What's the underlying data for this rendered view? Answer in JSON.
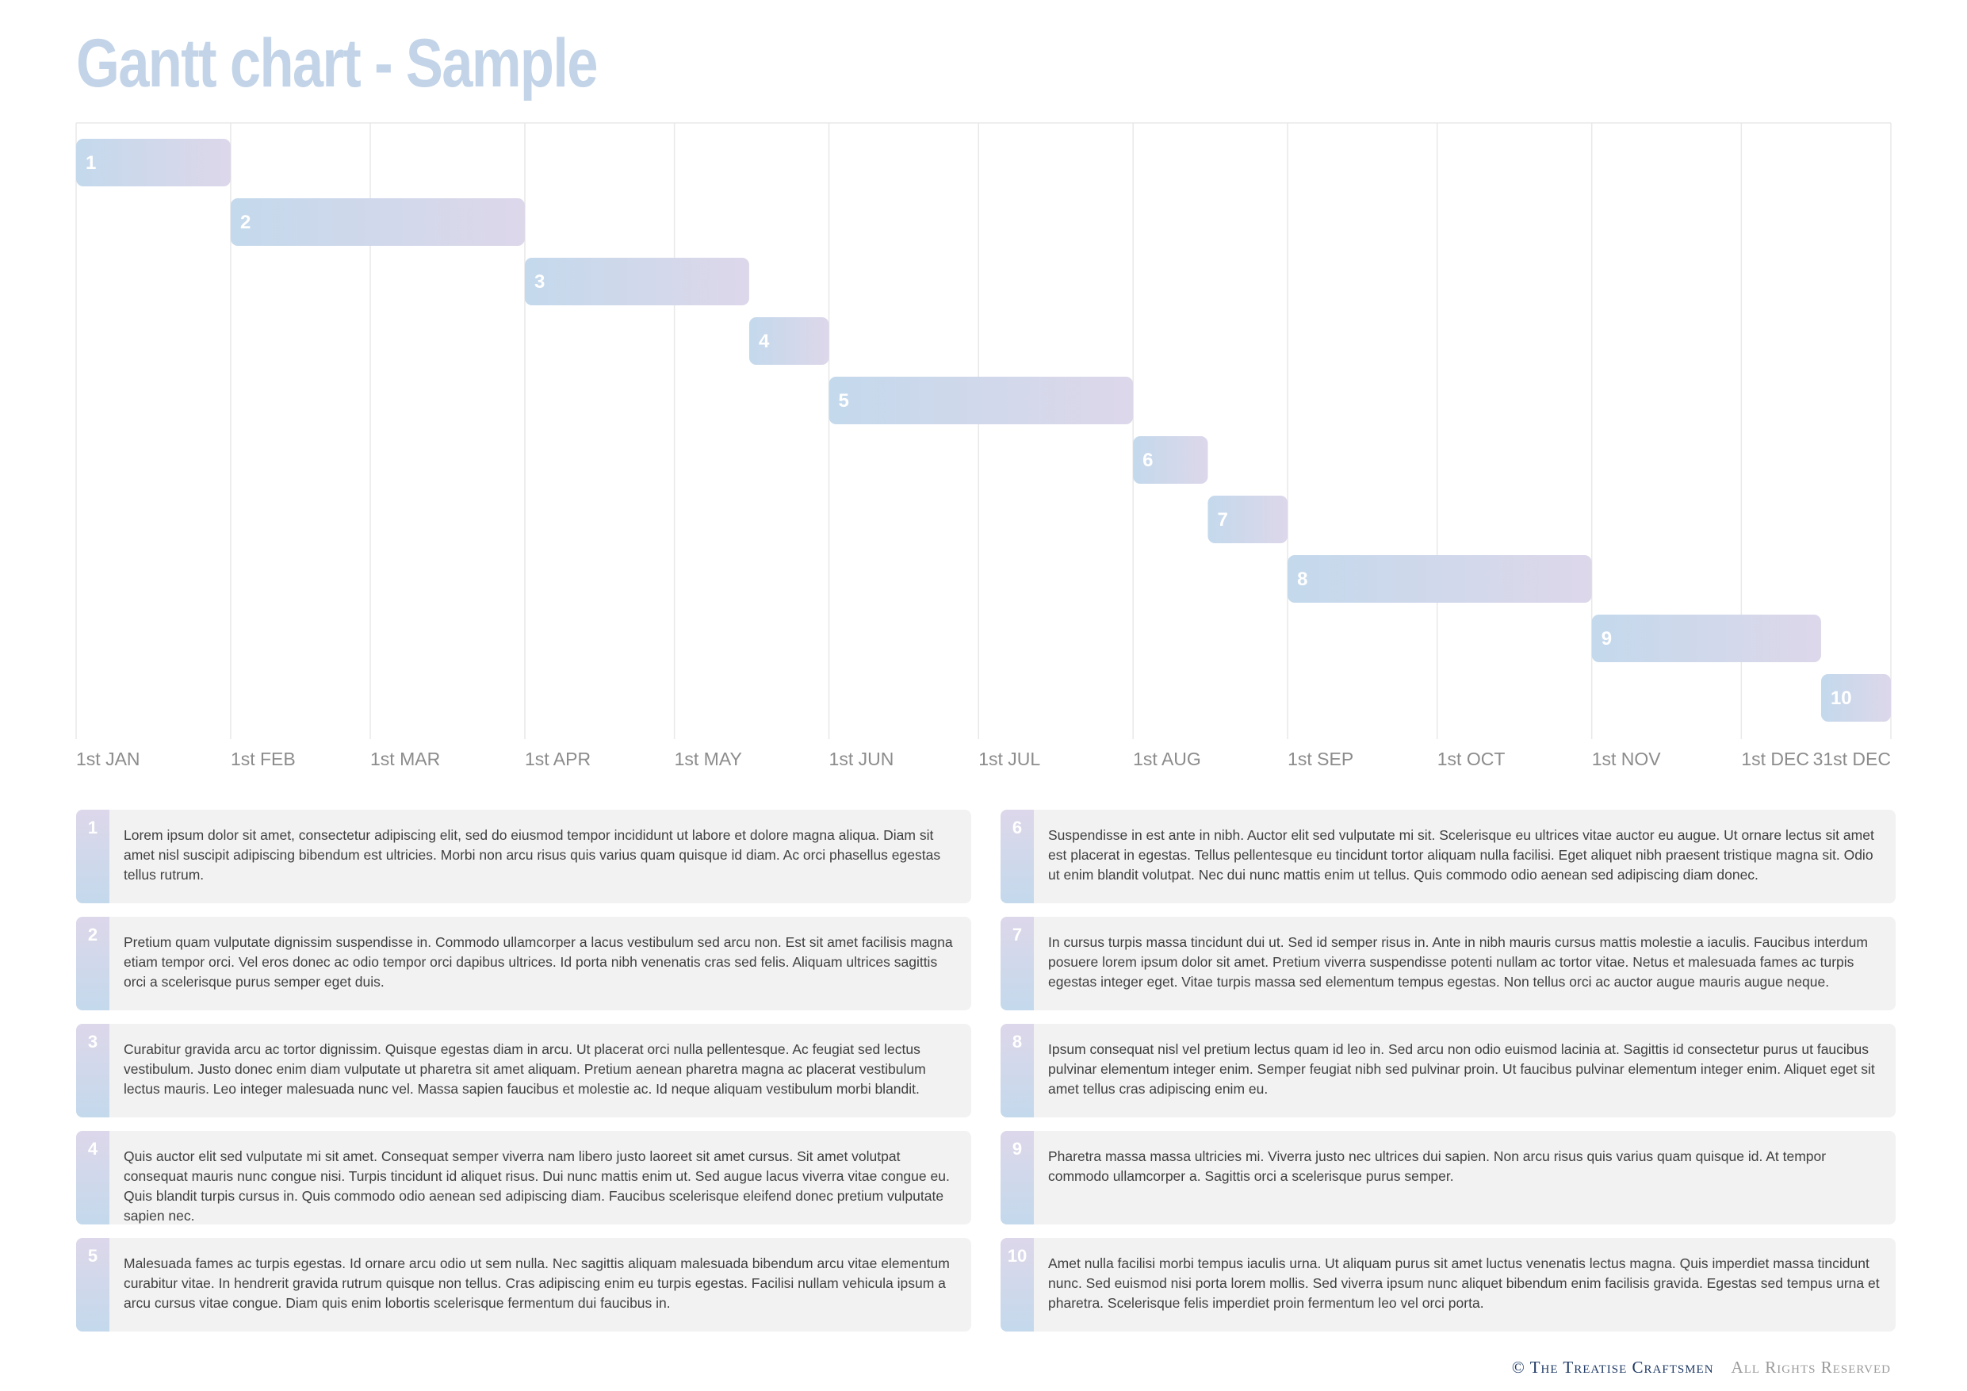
{
  "title": "Gantt chart - Sample",
  "colors": {
    "bar_start": "#c4d9ec",
    "bar_end": "#ddd7ea",
    "legend_box": "#f2f2f2",
    "axis_text": "#8c8c8c",
    "grid": "#e8e8e8"
  },
  "chart_data": {
    "type": "gantt",
    "title": "Gantt chart - Sample",
    "x_axis": {
      "ticks": [
        {
          "date": "01-01",
          "label": "1st JAN"
        },
        {
          "date": "02-01",
          "label": "1st FEB"
        },
        {
          "date": "03-01",
          "label": "1st MAR"
        },
        {
          "date": "04-01",
          "label": "1st APR"
        },
        {
          "date": "05-01",
          "label": "1st MAY"
        },
        {
          "date": "06-01",
          "label": "1st JUN"
        },
        {
          "date": "07-01",
          "label": "1st JUL"
        },
        {
          "date": "08-01",
          "label": "1st AUG"
        },
        {
          "date": "09-01",
          "label": "1st SEP"
        },
        {
          "date": "10-01",
          "label": "1st OCT"
        },
        {
          "date": "11-01",
          "label": "1st NOV"
        },
        {
          "date": "12-01",
          "label": "1st DEC"
        },
        {
          "date": "12-31",
          "label": "31st DEC"
        }
      ],
      "range": [
        "01-01",
        "12-31"
      ]
    },
    "grid": true,
    "tasks": [
      {
        "label": "1",
        "start": "01-01",
        "end": "02-01"
      },
      {
        "label": "2",
        "start": "02-01",
        "end": "04-01"
      },
      {
        "label": "3",
        "start": "04-01",
        "end": "05-16"
      },
      {
        "label": "4",
        "start": "05-16",
        "end": "06-01"
      },
      {
        "label": "5",
        "start": "06-01",
        "end": "08-01"
      },
      {
        "label": "6",
        "start": "08-01",
        "end": "08-16"
      },
      {
        "label": "7",
        "start": "08-16",
        "end": "09-01"
      },
      {
        "label": "8",
        "start": "09-01",
        "end": "11-01"
      },
      {
        "label": "9",
        "start": "11-01",
        "end": "12-17"
      },
      {
        "label": "10",
        "start": "12-17",
        "end": "12-31"
      }
    ]
  },
  "legend": [
    {
      "num": "1",
      "text": "Lorem ipsum dolor sit amet, consectetur adipiscing elit, sed do eiusmod tempor incididunt ut labore et dolore magna aliqua. Diam sit amet nisl suscipit adipiscing bibendum est ultricies. Morbi non arcu risus quis varius quam quisque id diam. Ac orci phasellus egestas tellus rutrum."
    },
    {
      "num": "2",
      "text": "Pretium quam vulputate dignissim suspendisse in. Commodo ullamcorper a lacus vestibulum sed arcu non. Est sit amet facilisis magna etiam tempor orci. Vel eros donec ac odio tempor orci dapibus ultrices. Id porta nibh venenatis cras sed felis. Aliquam ultrices sagittis orci a scelerisque purus semper eget duis."
    },
    {
      "num": "3",
      "text": "Curabitur gravida arcu ac tortor dignissim. Quisque egestas diam in arcu. Ut placerat orci nulla pellentesque. Ac feugiat sed lectus vestibulum. Justo donec enim diam vulputate ut pharetra sit amet aliquam. Pretium aenean pharetra magna ac placerat vestibulum lectus mauris. Leo integer malesuada nunc vel. Massa sapien faucibus et molestie ac. Id neque aliquam vestibulum morbi blandit."
    },
    {
      "num": "4",
      "text": "Quis auctor elit sed vulputate mi sit amet. Consequat semper viverra nam libero justo laoreet sit amet cursus. Sit amet volutpat consequat mauris nunc congue nisi. Turpis tincidunt id aliquet risus. Dui nunc mattis enim ut. Sed augue lacus viverra vitae congue eu. Quis blandit turpis cursus in. Quis commodo odio aenean sed adipiscing diam. Faucibus scelerisque eleifend donec pretium vulputate sapien nec."
    },
    {
      "num": "5",
      "text": "Malesuada fames ac turpis egestas. Id ornare arcu odio ut sem nulla. Nec sagittis aliquam malesuada bibendum arcu vitae elementum curabitur vitae. In hendrerit gravida rutrum quisque non tellus. Cras adipiscing enim eu turpis egestas. Facilisi nullam vehicula ipsum a arcu cursus vitae congue. Diam quis enim lobortis scelerisque fermentum dui faucibus in."
    },
    {
      "num": "6",
      "text": "Suspendisse in est ante in nibh. Auctor elit sed vulputate mi sit. Scelerisque eu ultrices vitae auctor eu augue. Ut ornare lectus sit amet est placerat in egestas. Tellus pellentesque eu tincidunt tortor aliquam nulla facilisi. Eget aliquet nibh praesent tristique magna sit. Odio ut enim blandit volutpat. Nec dui nunc mattis enim ut tellus. Quis commodo odio aenean sed adipiscing diam donec."
    },
    {
      "num": "7",
      "text": "In cursus turpis massa tincidunt dui ut. Sed id semper risus in. Ante in nibh mauris cursus mattis molestie a iaculis. Faucibus interdum posuere lorem ipsum dolor sit amet. Pretium viverra suspendisse potenti nullam ac tortor vitae. Netus et malesuada fames ac turpis egestas integer eget. Vitae turpis massa sed elementum tempus egestas. Non tellus orci ac auctor augue mauris augue neque."
    },
    {
      "num": "8",
      "text": "Ipsum consequat nisl vel pretium lectus quam id leo in. Sed arcu non odio euismod lacinia at. Sagittis id consectetur purus ut faucibus pulvinar elementum integer enim. Semper feugiat nibh sed pulvinar proin. Ut faucibus pulvinar elementum integer enim. Aliquet eget sit amet tellus cras adipiscing enim eu."
    },
    {
      "num": "9",
      "text": "Pharetra massa massa ultricies mi. Viverra justo nec ultrices dui sapien. Non arcu risus quis varius quam quisque id. At tempor commodo ullamcorper a. Sagittis orci a scelerisque purus semper."
    },
    {
      "num": "10",
      "text": "Amet nulla facilisi morbi tempus iaculis urna. Ut aliquam purus sit amet luctus venenatis lectus magna. Quis imperdiet massa tincidunt nunc. Sed euismod nisi porta lorem mollis. Sed viverra ipsum nunc aliquet bibendum enim facilisis gravida. Egestas sed tempus urna et pharetra. Scelerisque felis imperdiet proin fermentum leo vel orci porta."
    }
  ],
  "footer": {
    "copyright": "© The Treatise Craftsmen",
    "rights": "All Rights Reserved"
  }
}
